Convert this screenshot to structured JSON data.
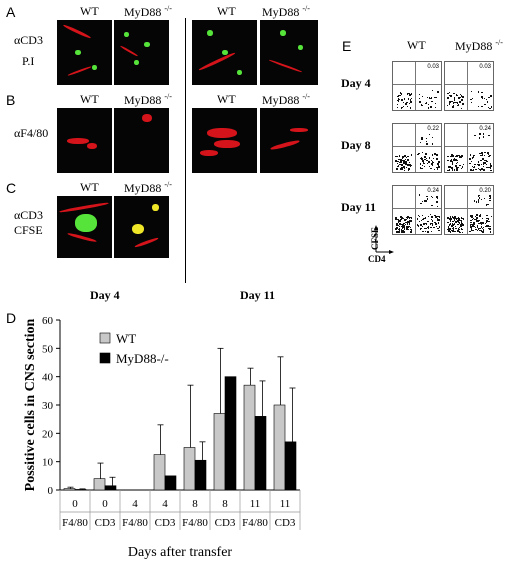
{
  "panels": {
    "A": {
      "letter": "A",
      "row_label_line1": "αCD3",
      "row_label_line2": "P.I"
    },
    "B": {
      "letter": "B",
      "row_label": "αF4/80"
    },
    "C": {
      "letter": "C",
      "row_label_line1": "αCD3",
      "row_label_line2": "CFSE"
    },
    "D": {
      "letter": "D"
    },
    "E": {
      "letter": "E"
    }
  },
  "columns": {
    "wt": "WT",
    "myd88": "MyD88",
    "myd88_sup": "-/-"
  },
  "days": {
    "day4": "Day 4",
    "day11": "Day 11"
  },
  "flow": {
    "rows": [
      {
        "label": "Day 4",
        "wt_value": "0.03",
        "myd_value": "0.03"
      },
      {
        "label": "Day 8",
        "wt_value": "0.22",
        "myd_value": "0.24"
      },
      {
        "label": "Day 11",
        "wt_value": "0.24",
        "myd_value": "0.20"
      }
    ],
    "y_axis": "CFSE",
    "x_axis": "CD4",
    "tick_labels": [
      "10⁰",
      "10¹",
      "10²",
      "10³",
      "10⁴"
    ]
  },
  "chart_data": {
    "type": "bar",
    "ylabel": "Possitive cells in CNS section",
    "xlabel": "Days after transfer",
    "ylim": [
      0,
      60
    ],
    "yticks": [
      0,
      10,
      20,
      30,
      40,
      50,
      60
    ],
    "categories": [
      {
        "day": "0",
        "marker": "F4/80"
      },
      {
        "day": "0",
        "marker": "CD3"
      },
      {
        "day": "4",
        "marker": "F4/80"
      },
      {
        "day": "4",
        "marker": "CD3"
      },
      {
        "day": "8",
        "marker": "F4/80"
      },
      {
        "day": "8",
        "marker": "CD3"
      },
      {
        "day": "11",
        "marker": "F4/80"
      },
      {
        "day": "11",
        "marker": "CD3"
      }
    ],
    "series": [
      {
        "name": "WT",
        "color": "#c8c8c8",
        "values": [
          0.5,
          4,
          0,
          12.5,
          15,
          27,
          37,
          30
        ],
        "errors": [
          0.5,
          5.5,
          0,
          10.5,
          22,
          23,
          6,
          17
        ]
      },
      {
        "name": "MyD88-/-",
        "color": "#000000",
        "values": [
          0.2,
          1.5,
          0,
          5,
          10.5,
          40,
          26,
          17
        ],
        "errors": [
          0.2,
          3,
          0,
          0,
          6.5,
          0,
          12.5,
          19
        ]
      }
    ],
    "legend": "top-left"
  }
}
